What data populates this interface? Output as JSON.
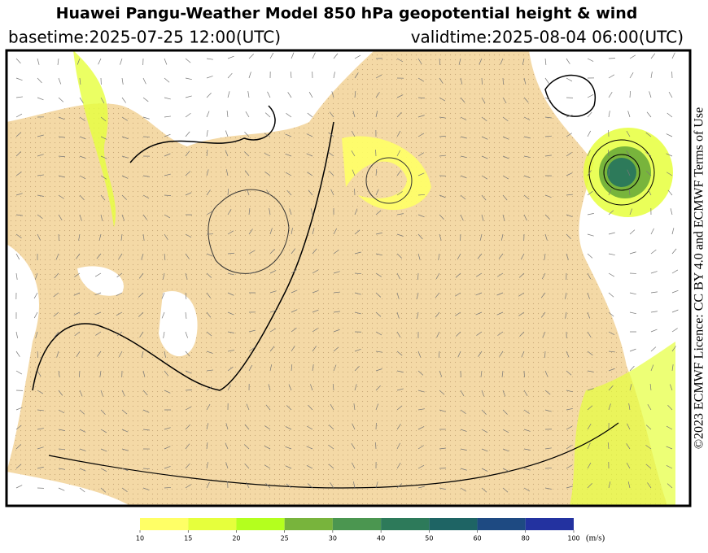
{
  "header": {
    "title": "Huawei Pangu-Weather Model 850 hPa geopotential height & wind",
    "basetime": "basetime:2025-07-25 12:00(UTC)",
    "validtime": "validtime:2025-08-04 06:00(UTC)"
  },
  "colorbar": {
    "ticks": [
      10,
      15,
      20,
      25,
      30,
      40,
      50,
      60,
      80,
      100
    ],
    "colors": [
      "#ffff66",
      "#e6ff3c",
      "#b4ff1e",
      "#78b43c",
      "#4b9650",
      "#2d7a5a",
      "#1e6464",
      "#1e4a82",
      "#2332a0"
    ],
    "unit": "(m/s)"
  },
  "credit": "©2023 ECMWF Licence: CC BY 4.0 and ECMWF Terms of Use"
}
